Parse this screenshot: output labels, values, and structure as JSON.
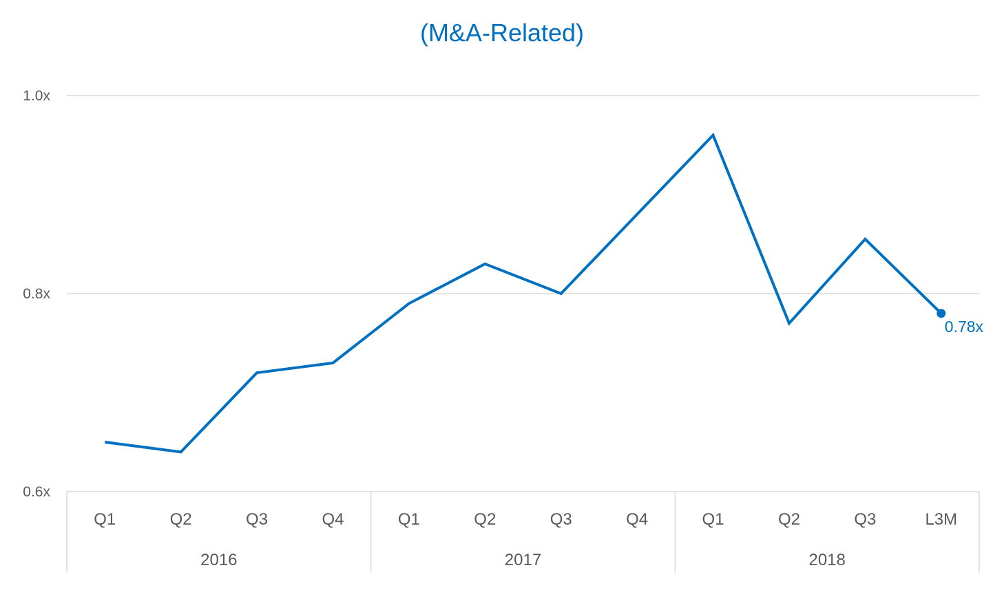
{
  "chart_data": {
    "type": "line",
    "title": "(M&A-Related)",
    "ylim": [
      0.6,
      1.0
    ],
    "yticks": [
      0.6,
      0.8,
      1.0
    ],
    "ytick_labels": [
      "0.6x",
      "0.8x",
      "1.0x"
    ],
    "grid": true,
    "categories": [
      "Q1",
      "Q2",
      "Q3",
      "Q4",
      "Q1",
      "Q2",
      "Q3",
      "Q4",
      "Q1",
      "Q2",
      "Q3",
      "L3M"
    ],
    "groups": [
      {
        "label": "2016",
        "count": 4
      },
      {
        "label": "2017",
        "count": 4
      },
      {
        "label": "2018",
        "count": 4
      }
    ],
    "series": [
      {
        "values": [
          0.65,
          0.64,
          0.72,
          0.73,
          0.79,
          0.83,
          0.8,
          0.88,
          0.96,
          0.77,
          0.855,
          0.78
        ],
        "color": "#0070C0",
        "end_label": "0.78x"
      }
    ]
  }
}
